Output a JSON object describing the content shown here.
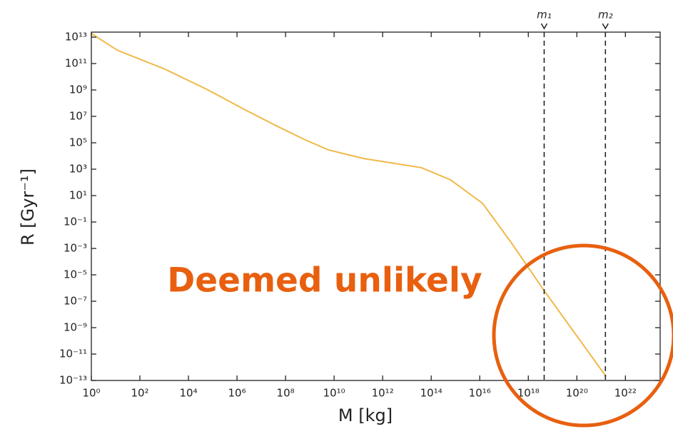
{
  "chart_data": {
    "type": "line",
    "xlabel": "M [kg]",
    "ylabel": "R [Gyr⁻¹]",
    "xscale": "log",
    "yscale": "log",
    "xlim": [
      1,
      2.7e+23
    ],
    "ylim": [
      1e-13,
      24000000000000.0
    ],
    "xticks": [
      {
        "value": 1,
        "label": "10⁰"
      },
      {
        "value": 100.0,
        "label": "10²"
      },
      {
        "value": 10000.0,
        "label": "10⁴"
      },
      {
        "value": 1000000.0,
        "label": "10⁶"
      },
      {
        "value": 100000000.0,
        "label": "10⁸"
      },
      {
        "value": 10000000000.0,
        "label": "10¹⁰"
      },
      {
        "value": 1000000000000.0,
        "label": "10¹²"
      },
      {
        "value": 100000000000000.0,
        "label": "10¹⁴"
      },
      {
        "value": 1e+16,
        "label": "10¹⁶"
      },
      {
        "value": 1e+18,
        "label": "10¹⁸"
      },
      {
        "value": 1e+20,
        "label": "10²⁰"
      },
      {
        "value": 1e+22,
        "label": "10²²"
      }
    ],
    "yticks": [
      {
        "value": 1e-13,
        "label": "10⁻¹³"
      },
      {
        "value": 1e-11,
        "label": "10⁻¹¹"
      },
      {
        "value": 1e-09,
        "label": "10⁻⁹"
      },
      {
        "value": 1e-07,
        "label": "10⁻⁷"
      },
      {
        "value": 1e-05,
        "label": "10⁻⁵"
      },
      {
        "value": 0.001,
        "label": "10⁻³"
      },
      {
        "value": 0.1,
        "label": "10⁻¹"
      },
      {
        "value": 10,
        "label": "10¹"
      },
      {
        "value": 1000.0,
        "label": "10³"
      },
      {
        "value": 100000.0,
        "label": "10⁵"
      },
      {
        "value": 10000000.0,
        "label": "10⁷"
      },
      {
        "value": 1000000000.0,
        "label": "10⁹"
      },
      {
        "value": 100000000000.0,
        "label": "10¹¹"
      },
      {
        "value": 10000000000000.0,
        "label": "10¹³"
      }
    ],
    "x": [
      1,
      12,
      1000,
      58000,
      2500000,
      36000000,
      550000000,
      5800000000,
      160000000000.0,
      40000000000000.0,
      630000000000000.0,
      1.3e+16,
      2e+17,
      4.5e+18,
      1.6e+21
    ],
    "color": "#f0b848",
    "values": [
      19000000000000.0,
      1000000000000.0,
      40000000000.0,
      1100000000.0,
      27000000.0,
      2200000.0,
      190000.0,
      29000.0,
      6500,
      1300,
      155,
      2.6,
      0.0027,
      6.3e-07,
      2e-13
    ],
    "vlines": [
      {
        "x": 4.5e+18,
        "label": "m₁"
      },
      {
        "x": 1.5e+21,
        "label": "m₂"
      }
    ],
    "annotation": "Deemed unlikely"
  }
}
